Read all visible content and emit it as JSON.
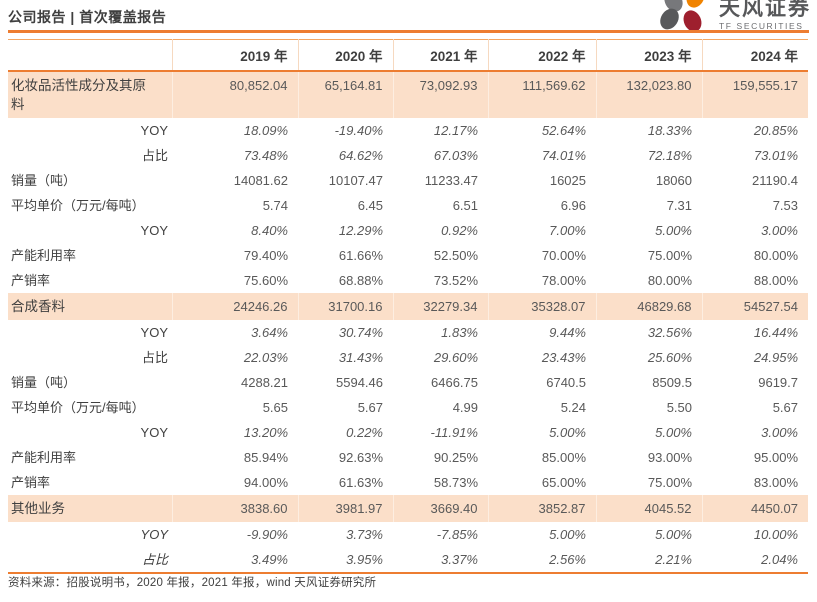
{
  "page": {
    "report_type": "公司报告 | 首次覆盖报告"
  },
  "brand": {
    "name_cn": "天风证券",
    "name_en": "TF SECURITIES",
    "accent_color": "#ED7D31",
    "highlight_row_color": "#FBDFC9",
    "logo_petal_colors": [
      "#77787b",
      "#F08300",
      "#58595b",
      "#9E1F2E"
    ]
  },
  "table": {
    "columns": [
      "2019 年",
      "2020 年",
      "2021 年",
      "2022 年",
      "2023 年",
      "2024 年"
    ],
    "rows": [
      {
        "label": "化妆品活性成分及其原料",
        "type": "section",
        "highlight": true,
        "italic_label": false,
        "italic_values": false,
        "values": [
          "80,852.04",
          "65,164.81",
          "73,092.93",
          "111,569.62",
          "132,023.80",
          "159,555.17"
        ]
      },
      {
        "label": "YOY",
        "type": "sub",
        "highlight": false,
        "italic_label": false,
        "italic_values": true,
        "values": [
          "18.09%",
          "-19.40%",
          "12.17%",
          "52.64%",
          "18.33%",
          "20.85%"
        ]
      },
      {
        "label": "占比",
        "type": "sub",
        "highlight": false,
        "italic_label": false,
        "italic_values": true,
        "values": [
          "73.48%",
          "64.62%",
          "67.03%",
          "74.01%",
          "72.18%",
          "73.01%"
        ]
      },
      {
        "label": "销量（吨）",
        "type": "metric",
        "highlight": false,
        "italic_label": false,
        "italic_values": false,
        "values": [
          "14081.62",
          "10107.47",
          "11233.47",
          "16025",
          "18060",
          "21190.4"
        ]
      },
      {
        "label": "平均单价（万元/每吨）",
        "type": "metric",
        "highlight": false,
        "italic_label": false,
        "italic_values": false,
        "values": [
          "5.74",
          "6.45",
          "6.51",
          "6.96",
          "7.31",
          "7.53"
        ]
      },
      {
        "label": "YOY",
        "type": "sub",
        "highlight": false,
        "italic_label": false,
        "italic_values": true,
        "values": [
          "8.40%",
          "12.29%",
          "0.92%",
          "7.00%",
          "5.00%",
          "3.00%"
        ]
      },
      {
        "label": "产能利用率",
        "type": "metric",
        "highlight": false,
        "italic_label": false,
        "italic_values": false,
        "values": [
          "79.40%",
          "61.66%",
          "52.50%",
          "70.00%",
          "75.00%",
          "80.00%"
        ]
      },
      {
        "label": "产销率",
        "type": "metric",
        "highlight": false,
        "italic_label": false,
        "italic_values": false,
        "values": [
          "75.60%",
          "68.88%",
          "73.52%",
          "78.00%",
          "80.00%",
          "88.00%"
        ]
      },
      {
        "label": "合成香料",
        "type": "section",
        "highlight": true,
        "italic_label": false,
        "italic_values": false,
        "values": [
          "24246.26",
          "31700.16",
          "32279.34",
          "35328.07",
          "46829.68",
          "54527.54"
        ]
      },
      {
        "label": "YOY",
        "type": "sub",
        "highlight": false,
        "italic_label": false,
        "italic_values": true,
        "values": [
          "3.64%",
          "30.74%",
          "1.83%",
          "9.44%",
          "32.56%",
          "16.44%"
        ]
      },
      {
        "label": "占比",
        "type": "sub",
        "highlight": false,
        "italic_label": false,
        "italic_values": true,
        "values": [
          "22.03%",
          "31.43%",
          "29.60%",
          "23.43%",
          "25.60%",
          "24.95%"
        ]
      },
      {
        "label": "销量（吨）",
        "type": "metric",
        "highlight": false,
        "italic_label": false,
        "italic_values": false,
        "values": [
          "4288.21",
          "5594.46",
          "6466.75",
          "6740.5",
          "8509.5",
          "9619.7"
        ]
      },
      {
        "label": "平均单价（万元/每吨）",
        "type": "metric",
        "highlight": false,
        "italic_label": false,
        "italic_values": false,
        "values": [
          "5.65",
          "5.67",
          "4.99",
          "5.24",
          "5.50",
          "5.67"
        ]
      },
      {
        "label": "YOY",
        "type": "sub",
        "highlight": false,
        "italic_label": false,
        "italic_values": true,
        "values": [
          "13.20%",
          "0.22%",
          "-11.91%",
          "5.00%",
          "5.00%",
          "3.00%"
        ]
      },
      {
        "label": "产能利用率",
        "type": "metric",
        "highlight": false,
        "italic_label": false,
        "italic_values": false,
        "values": [
          "85.94%",
          "92.63%",
          "90.25%",
          "85.00%",
          "93.00%",
          "95.00%"
        ]
      },
      {
        "label": "产销率",
        "type": "metric",
        "highlight": false,
        "italic_label": false,
        "italic_values": false,
        "values": [
          "94.00%",
          "61.63%",
          "58.73%",
          "65.00%",
          "75.00%",
          "83.00%"
        ]
      },
      {
        "label": "其他业务",
        "type": "section",
        "highlight": true,
        "italic_label": false,
        "italic_values": false,
        "values": [
          "3838.60",
          "3981.97",
          "3669.40",
          "3852.87",
          "4045.52",
          "4450.07"
        ]
      },
      {
        "label": "YOY",
        "type": "sub",
        "highlight": false,
        "italic_label": true,
        "italic_values": true,
        "values": [
          "-9.90%",
          "3.73%",
          "-7.85%",
          "5.00%",
          "5.00%",
          "10.00%"
        ]
      },
      {
        "label": "占比",
        "type": "sub",
        "highlight": false,
        "italic_label": true,
        "italic_values": true,
        "values": [
          "3.49%",
          "3.95%",
          "3.37%",
          "2.56%",
          "2.21%",
          "2.04%"
        ]
      }
    ]
  },
  "footer": {
    "source": "资料来源：招股说明书，2020 年报，2021 年报，wind 天风证券研究所"
  }
}
